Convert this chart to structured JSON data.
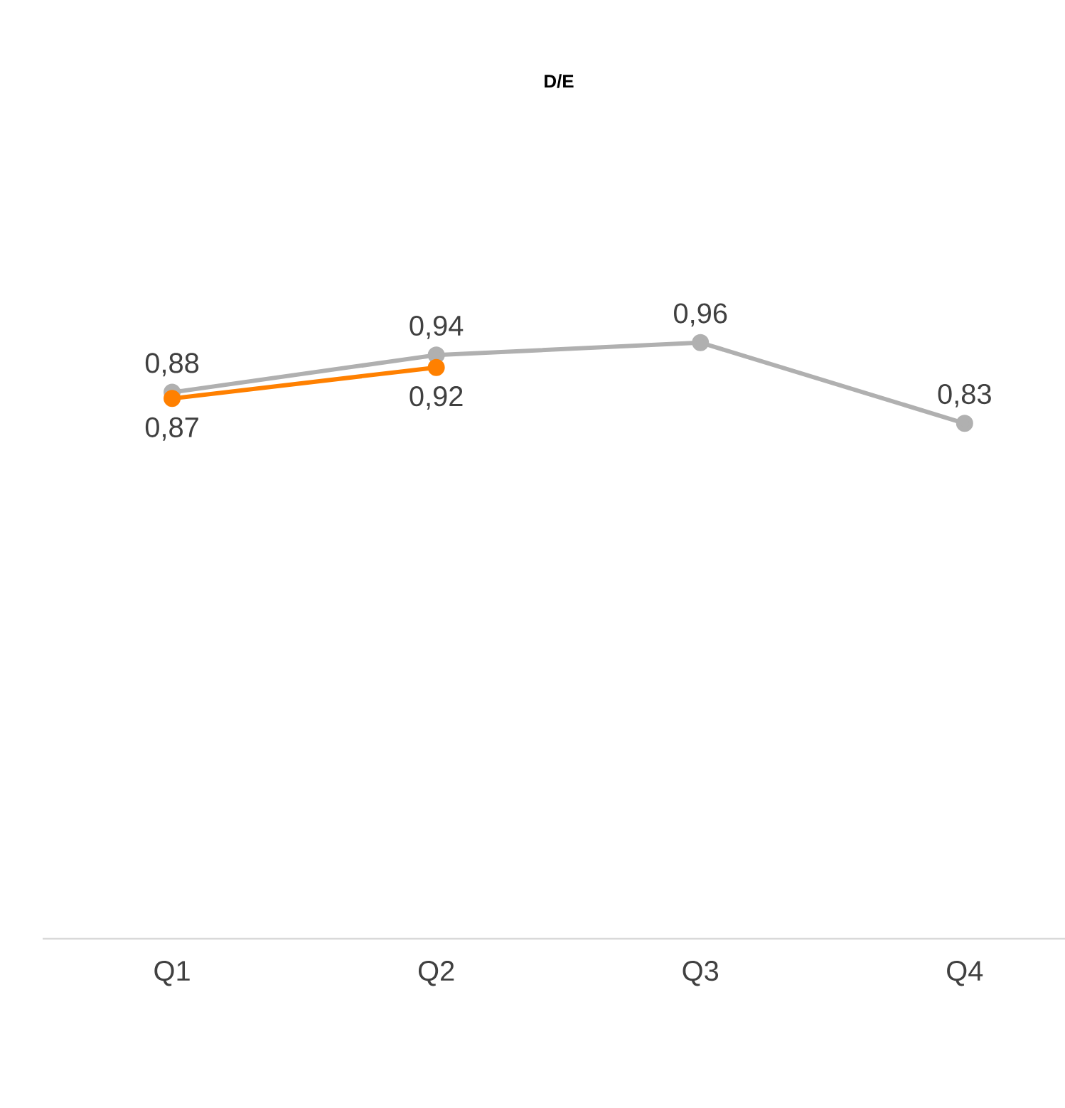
{
  "chart_data": {
    "type": "line",
    "title": "D/E",
    "categories": [
      "Q1",
      "Q2",
      "Q3",
      "Q4"
    ],
    "series": [
      {
        "color": "#b0b0b0",
        "values": [
          0.88,
          0.94,
          0.96,
          0.83
        ],
        "value_labels": [
          "0,88",
          "0,94",
          "0,96",
          "0,83"
        ]
      },
      {
        "color": "#ff8000",
        "values": [
          0.87,
          0.92,
          null,
          null
        ],
        "value_labels": [
          "0,87",
          "0,92",
          null,
          null
        ]
      }
    ],
    "tick_labels": "x",
    "marker": "circle",
    "line_style": "solid"
  }
}
